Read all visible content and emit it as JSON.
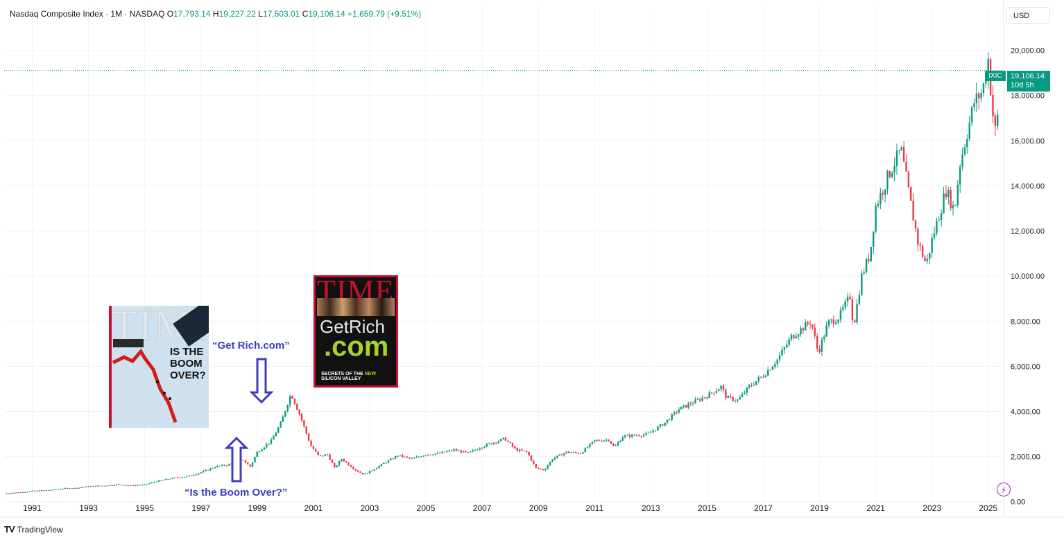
{
  "header": {
    "symbol_name": "Nasdaq Composite Index · 1M · NASDAQ",
    "o_label": "O",
    "o_value": "17,793.14",
    "h_label": "H",
    "h_value": "19,227.22",
    "l_label": "L",
    "l_value": "17,503.01",
    "c_label": "C",
    "c_value": "19,106.14",
    "change": "+1,659.79 (+9.51%)"
  },
  "currency_button": "USD",
  "last_price": {
    "symbol": "IXIC",
    "price": "19,106.14",
    "countdown": "10d 5h"
  },
  "branding": {
    "logo_text": "TradingView",
    "logo_mark": "TV"
  },
  "annotations": {
    "label_get_rich": "“Get Rich.com”",
    "label_boom_over": "“Is the Boom Over?”",
    "cover1_title": "TIME",
    "cover1_headline": "IS THE BOOM OVER?",
    "cover2_title": "TIME",
    "cover2_headline_1": "GetRich",
    "cover2_headline_2": ".com",
    "cover2_sub_1": "SECRETS OF THE ",
    "cover2_sub_2": "NEW",
    "cover2_sub_3": " SILICON VALLEY"
  },
  "colors": {
    "up": "#089981",
    "down": "#f23645",
    "grid": "#f0f3fa",
    "arrow": "#3d3dbf"
  },
  "chart_data": {
    "type": "candlestick",
    "x_ticks": [
      "1991",
      "1993",
      "1995",
      "1997",
      "1999",
      "2001",
      "2003",
      "2005",
      "2007",
      "2009",
      "2011",
      "2013",
      "2015",
      "2017",
      "2019",
      "2021",
      "2023",
      "2025"
    ],
    "y_ticks": [
      "0.00",
      "2,000.00",
      "4,000.00",
      "6,000.00",
      "8,000.00",
      "10,000.00",
      "12,000.00",
      "14,000.00",
      "16,000.00",
      "18,000.00",
      "20,000.00"
    ],
    "xlim": [
      1990.0,
      2025.5
    ],
    "ylim": [
      -500,
      21000
    ],
    "last_close": 19106.14,
    "series": [
      {
        "values": [
          [
            1990.0,
            373
          ],
          [
            1990.5,
            410
          ],
          [
            1991.0,
            470
          ],
          [
            1991.5,
            500
          ],
          [
            1992.0,
            580
          ],
          [
            1992.5,
            600
          ],
          [
            1993.0,
            680
          ],
          [
            1993.5,
            710
          ],
          [
            1994.0,
            760
          ],
          [
            1994.5,
            720
          ],
          [
            1995.0,
            760
          ],
          [
            1995.5,
            930
          ],
          [
            1996.0,
            1050
          ],
          [
            1996.5,
            1120
          ],
          [
            1997.0,
            1300
          ],
          [
            1997.5,
            1550
          ],
          [
            1998.0,
            1650
          ],
          [
            1998.5,
            1850
          ],
          [
            1998.75,
            1550
          ],
          [
            1999.0,
            2200
          ],
          [
            1999.5,
            2700
          ],
          [
            1999.85,
            3500
          ],
          [
            2000.2,
            4800
          ],
          [
            2000.5,
            3900
          ],
          [
            2000.9,
            2500
          ],
          [
            2001.2,
            2000
          ],
          [
            2001.5,
            2100
          ],
          [
            2001.75,
            1500
          ],
          [
            2002.0,
            1900
          ],
          [
            2002.5,
            1400
          ],
          [
            2002.8,
            1200
          ],
          [
            2003.0,
            1340
          ],
          [
            2003.5,
            1700
          ],
          [
            2004.0,
            2050
          ],
          [
            2004.5,
            1900
          ],
          [
            2005.0,
            2100
          ],
          [
            2005.5,
            2150
          ],
          [
            2006.0,
            2300
          ],
          [
            2006.5,
            2150
          ],
          [
            2007.0,
            2450
          ],
          [
            2007.8,
            2800
          ],
          [
            2008.2,
            2300
          ],
          [
            2008.6,
            2200
          ],
          [
            2008.9,
            1500
          ],
          [
            2009.2,
            1400
          ],
          [
            2009.5,
            1900
          ],
          [
            2010.0,
            2200
          ],
          [
            2010.5,
            2150
          ],
          [
            2011.0,
            2700
          ],
          [
            2011.5,
            2750
          ],
          [
            2011.7,
            2400
          ],
          [
            2012.0,
            2900
          ],
          [
            2012.5,
            2950
          ],
          [
            2012.9,
            3000
          ],
          [
            2013.5,
            3500
          ],
          [
            2014.0,
            4100
          ],
          [
            2014.5,
            4400
          ],
          [
            2015.0,
            4700
          ],
          [
            2015.5,
            5100
          ],
          [
            2015.7,
            4600
          ],
          [
            2016.1,
            4500
          ],
          [
            2016.5,
            5100
          ],
          [
            2017.0,
            5600
          ],
          [
            2017.5,
            6300
          ],
          [
            2018.0,
            7300
          ],
          [
            2018.7,
            8000
          ],
          [
            2018.95,
            6600
          ],
          [
            2019.3,
            7900
          ],
          [
            2019.7,
            8200
          ],
          [
            2020.1,
            9150
          ],
          [
            2020.2,
            7700
          ],
          [
            2020.5,
            10000
          ],
          [
            2020.8,
            11000
          ],
          [
            2021.0,
            13100
          ],
          [
            2021.5,
            14600
          ],
          [
            2021.9,
            15600
          ],
          [
            2022.2,
            13500
          ],
          [
            2022.5,
            11500
          ],
          [
            2022.8,
            10500
          ],
          [
            2023.0,
            11600
          ],
          [
            2023.5,
            13800
          ],
          [
            2023.8,
            12900
          ],
          [
            2024.0,
            15000
          ],
          [
            2024.5,
            17700
          ],
          [
            2024.8,
            18200
          ],
          [
            2025.0,
            19600
          ],
          [
            2025.15,
            17300
          ],
          [
            2025.3,
            16000
          ],
          [
            2025.4,
            19106
          ]
        ]
      }
    ]
  }
}
